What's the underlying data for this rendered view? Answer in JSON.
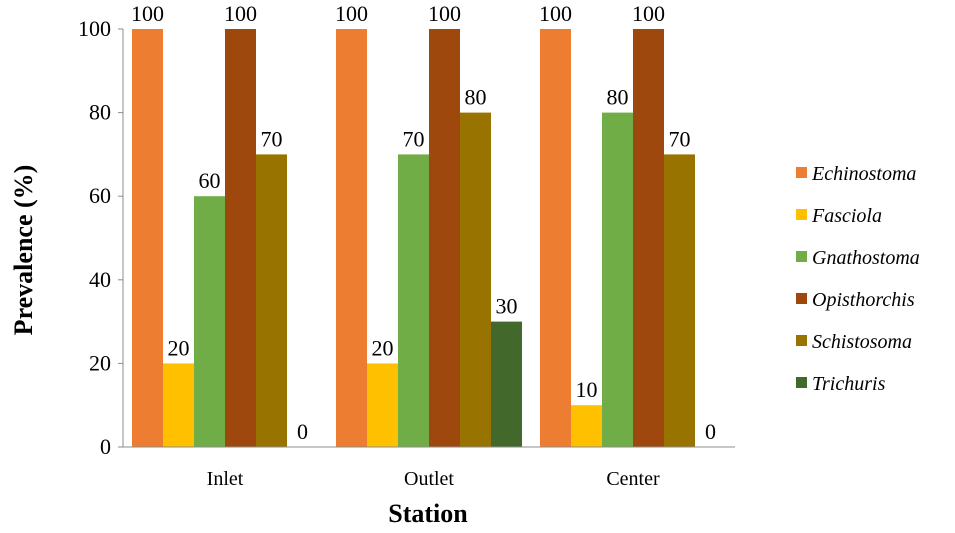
{
  "chart_data": {
    "type": "bar",
    "title": "",
    "xlabel": "Station",
    "ylabel": "Prevalence (%)",
    "ylim": [
      0,
      100
    ],
    "yticks": [
      "0",
      "20",
      "40",
      "60",
      "80",
      "100"
    ],
    "categories": [
      "Inlet",
      "Outlet",
      "Center"
    ],
    "series": [
      {
        "name": "Echinostoma",
        "color": "#ED7D31",
        "values": [
          100,
          100,
          100
        ],
        "labels": [
          "100",
          "100",
          "100"
        ]
      },
      {
        "name": "Fasciola",
        "color": "#FFC000",
        "values": [
          20,
          20,
          10
        ],
        "labels": [
          "20",
          "20",
          "10"
        ]
      },
      {
        "name": "Gnathostoma",
        "color": "#70AD47",
        "values": [
          60,
          70,
          80
        ],
        "labels": [
          "60",
          "70",
          "80"
        ]
      },
      {
        "name": "Opisthorchis",
        "color": "#9E480E",
        "values": [
          100,
          100,
          100
        ],
        "labels": [
          "100",
          "100",
          "100"
        ]
      },
      {
        "name": "Schistosoma",
        "color": "#997300",
        "values": [
          70,
          80,
          70
        ],
        "labels": [
          "70",
          "80",
          "70"
        ]
      },
      {
        "name": "Trichuris",
        "color": "#43682B",
        "values": [
          0,
          30,
          0
        ],
        "labels": [
          "0",
          "30",
          "0"
        ]
      }
    ],
    "grid": false,
    "legend": "right"
  }
}
